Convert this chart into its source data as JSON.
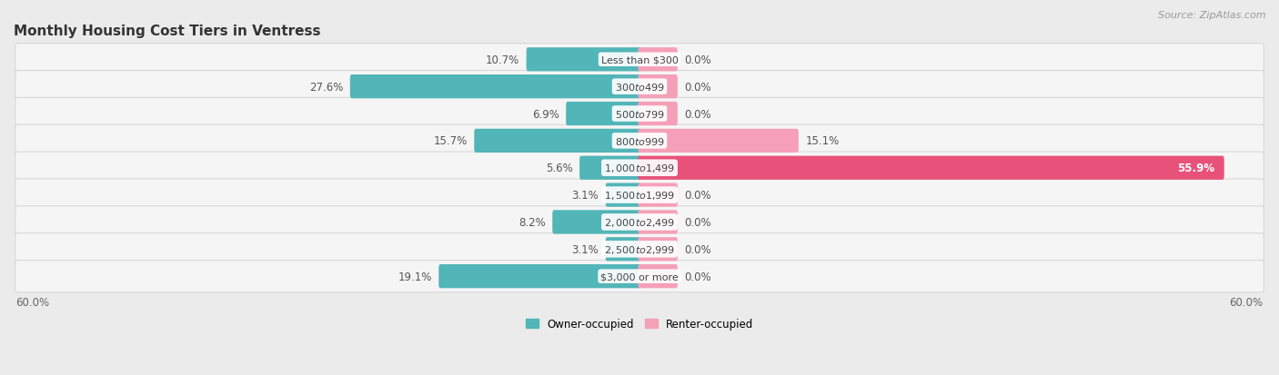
{
  "title": "Monthly Housing Cost Tiers in Ventress",
  "source": "Source: ZipAtlas.com",
  "categories": [
    "Less than $300",
    "$300 to $499",
    "$500 to $799",
    "$800 to $999",
    "$1,000 to $1,499",
    "$1,500 to $1,999",
    "$2,000 to $2,499",
    "$2,500 to $2,999",
    "$3,000 or more"
  ],
  "owner_values": [
    10.7,
    27.6,
    6.9,
    15.7,
    5.6,
    3.1,
    8.2,
    3.1,
    19.1
  ],
  "renter_values": [
    0.0,
    0.0,
    0.0,
    15.1,
    55.9,
    0.0,
    0.0,
    0.0,
    0.0
  ],
  "renter_stub": 3.5,
  "owner_color": "#52b5b8",
  "renter_color_normal": "#f5a0b8",
  "renter_color_large": "#e8527a",
  "axis_limit": 60.0,
  "background_color": "#ebebeb",
  "row_bg_color": "#f5f5f5",
  "row_bg_color_alt": "#eaeaea",
  "title_fontsize": 11,
  "source_fontsize": 8,
  "bar_height": 0.58,
  "label_fontsize": 8.5,
  "cat_fontsize": 8,
  "legend_fontsize": 8.5,
  "axis_label_fontsize": 8.5
}
